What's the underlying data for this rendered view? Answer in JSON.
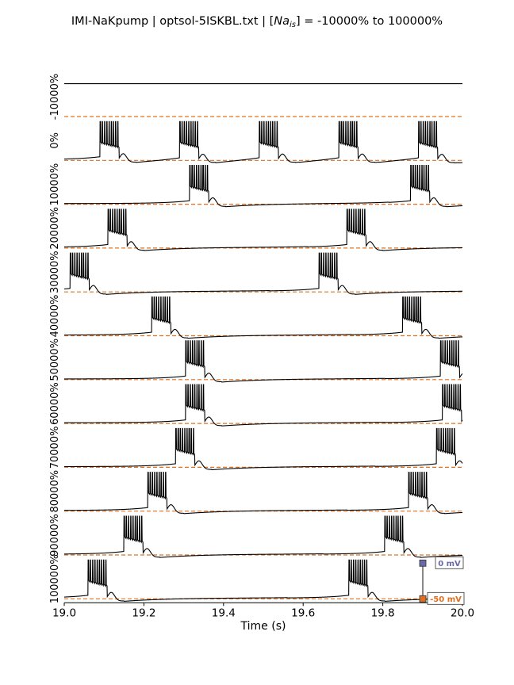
{
  "chart_data": {
    "type": "line",
    "title_prefix": "IMI-NaKpump | optsol-5ISKBL.txt | [",
    "title_var": "Na",
    "title_sub": "is",
    "title_suffix": "] = -10000% to 100000%",
    "xlabel": "Time (s)",
    "xlim": [
      19.0,
      20.0
    ],
    "xticks": [
      "19.0",
      "19.2",
      "19.4",
      "19.6",
      "19.8",
      "20.0"
    ],
    "xtick_values": [
      19.0,
      19.2,
      19.4,
      19.6,
      19.8,
      20.0
    ],
    "grid": false,
    "reference_line": {
      "value_mV": -50,
      "color": "#e07020",
      "style": "dashed"
    },
    "trace_color": "#000000",
    "scale_bar": {
      "top_label": "0 mV",
      "top_color": "#6a6aa8",
      "bottom_label": "-50 mV",
      "bottom_color": "#e07020"
    },
    "series": [
      {
        "label": "-10000%",
        "bursts": []
      },
      {
        "label": "0%",
        "bursts": [
          19.09,
          19.29,
          19.49,
          19.69,
          19.89
        ]
      },
      {
        "label": "10000%",
        "bursts": [
          19.315,
          19.87
        ]
      },
      {
        "label": "20000%",
        "bursts": [
          19.11,
          19.71
        ]
      },
      {
        "label": "30000%",
        "bursts": [
          19.015,
          19.64
        ]
      },
      {
        "label": "40000%",
        "bursts": [
          19.22,
          19.85
        ]
      },
      {
        "label": "50000%",
        "bursts": [
          19.305,
          19.945
        ]
      },
      {
        "label": "60000%",
        "bursts": [
          19.305,
          19.95
        ]
      },
      {
        "label": "70000%",
        "bursts": [
          19.28,
          19.935
        ]
      },
      {
        "label": "80000%",
        "bursts": [
          19.21,
          19.865
        ]
      },
      {
        "label": "90000%",
        "bursts": [
          19.15,
          19.805
        ]
      },
      {
        "label": "100000%",
        "bursts": [
          19.06,
          19.715
        ]
      }
    ]
  }
}
